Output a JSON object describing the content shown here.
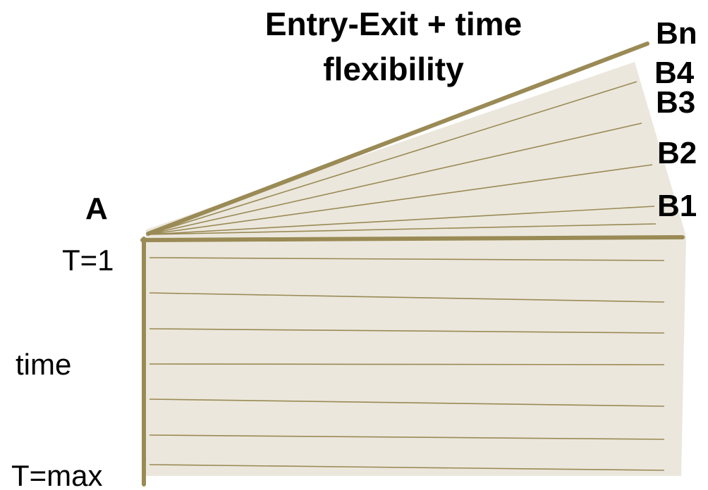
{
  "title_line1": "Entry-Exit + time",
  "title_line2": "flexibility",
  "point_a": "A",
  "t_start": "T=1",
  "time_axis": "time",
  "t_end": "T=max",
  "endpoints": [
    "Bn",
    "B4",
    "B3",
    "B2",
    "B1"
  ],
  "colors": {
    "fill": "#ebe7dc",
    "arrow": "#9a8a55",
    "thin_line": "#9a8a55",
    "text": "#000000"
  }
}
